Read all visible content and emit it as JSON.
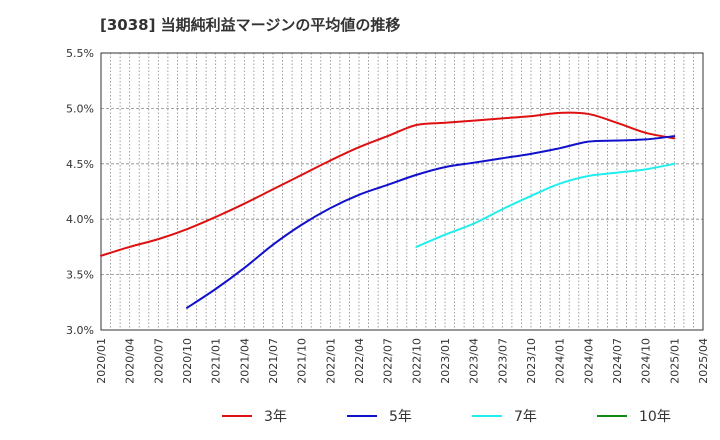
{
  "chart_data": {
    "type": "line",
    "title": "[3038]  当期純利益マージンの平均値の推移",
    "xlabel": "",
    "ylabel": "",
    "x_ticks": [
      "2020/01",
      "2020/04",
      "2020/07",
      "2020/10",
      "2021/01",
      "2021/04",
      "2021/07",
      "2021/10",
      "2022/01",
      "2022/04",
      "2022/07",
      "2022/10",
      "2023/01",
      "2023/04",
      "2023/07",
      "2023/10",
      "2024/01",
      "2024/04",
      "2024/07",
      "2024/10",
      "2025/01",
      "2025/04"
    ],
    "y_ticks": [
      "3.0%",
      "3.5%",
      "4.0%",
      "4.5%",
      "5.0%",
      "5.5%"
    ],
    "ylim": [
      3.0,
      5.5
    ],
    "grid": true,
    "legend_position": "bottom",
    "series": [
      {
        "name": "3年",
        "color": "#dd1111",
        "points": [
          [
            "2020/01",
            3.67
          ],
          [
            "2020/04",
            3.75
          ],
          [
            "2020/07",
            3.82
          ],
          [
            "2020/10",
            3.91
          ],
          [
            "2021/01",
            4.02
          ],
          [
            "2021/04",
            4.14
          ],
          [
            "2021/07",
            4.27
          ],
          [
            "2021/10",
            4.4
          ],
          [
            "2022/01",
            4.53
          ],
          [
            "2022/04",
            4.65
          ],
          [
            "2022/07",
            4.75
          ],
          [
            "2022/10",
            4.85
          ],
          [
            "2023/01",
            4.87
          ],
          [
            "2023/04",
            4.89
          ],
          [
            "2023/07",
            4.91
          ],
          [
            "2023/10",
            4.93
          ],
          [
            "2024/01",
            4.96
          ],
          [
            "2024/04",
            4.95
          ],
          [
            "2024/07",
            4.87
          ],
          [
            "2024/10",
            4.78
          ],
          [
            "2025/01",
            4.73
          ]
        ]
      },
      {
        "name": "5年",
        "color": "#1111cc",
        "points": [
          [
            "2020/10",
            3.2
          ],
          [
            "2021/01",
            3.37
          ],
          [
            "2021/04",
            3.56
          ],
          [
            "2021/07",
            3.77
          ],
          [
            "2021/10",
            3.95
          ],
          [
            "2022/01",
            4.1
          ],
          [
            "2022/04",
            4.22
          ],
          [
            "2022/07",
            4.31
          ],
          [
            "2022/10",
            4.4
          ],
          [
            "2023/01",
            4.47
          ],
          [
            "2023/04",
            4.51
          ],
          [
            "2023/07",
            4.55
          ],
          [
            "2023/10",
            4.59
          ],
          [
            "2024/01",
            4.64
          ],
          [
            "2024/04",
            4.7
          ],
          [
            "2024/07",
            4.71
          ],
          [
            "2024/10",
            4.72
          ],
          [
            "2025/01",
            4.75
          ]
        ]
      },
      {
        "name": "7年",
        "color": "#22eeee",
        "points": [
          [
            "2022/10",
            3.75
          ],
          [
            "2023/01",
            3.86
          ],
          [
            "2023/04",
            3.96
          ],
          [
            "2023/07",
            4.09
          ],
          [
            "2023/10",
            4.21
          ],
          [
            "2024/01",
            4.32
          ],
          [
            "2024/04",
            4.39
          ],
          [
            "2024/07",
            4.42
          ],
          [
            "2024/10",
            4.45
          ],
          [
            "2025/01",
            4.5
          ]
        ]
      },
      {
        "name": "10年",
        "color": "#118811",
        "points": []
      }
    ]
  }
}
